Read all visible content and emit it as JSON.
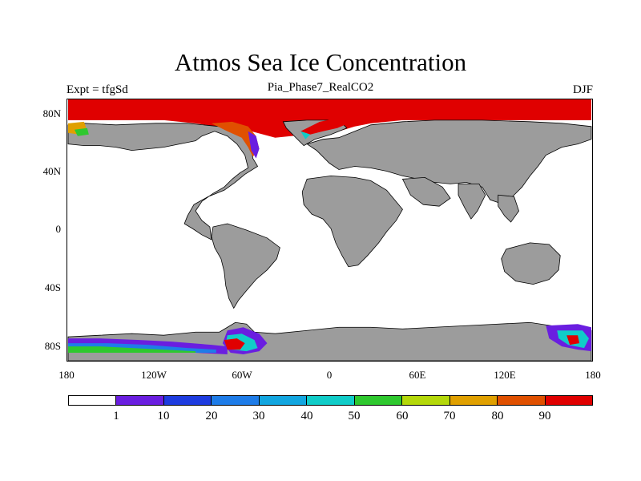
{
  "header": {
    "title": "Atmos Sea Ice Concentration",
    "experiment": "Expt = tfgSd",
    "case": "Pia_Phase7_RealCO2",
    "season": "DJF"
  },
  "axes": {
    "lat_labels": [
      "80N",
      "40N",
      "0",
      "40S",
      "80S"
    ],
    "lat_values": [
      80,
      40,
      0,
      -40,
      -80
    ],
    "lon_labels": [
      "180",
      "120W",
      "60W",
      "0",
      "60E",
      "120E",
      "180"
    ],
    "lon_values": [
      -180,
      -120,
      -60,
      0,
      60,
      120,
      180
    ],
    "lat_range": [
      -90,
      90
    ],
    "lon_range": [
      -180,
      180
    ]
  },
  "colorbar": {
    "labels": [
      "1",
      "10",
      "20",
      "30",
      "40",
      "50",
      "60",
      "70",
      "80",
      "90"
    ],
    "colors": [
      "#ffffff",
      "#6a1ee0",
      "#1e3ce0",
      "#1e7ce8",
      "#12a6e0",
      "#10ccc8",
      "#2ec82e",
      "#b4d80a",
      "#e0a000",
      "#e05000",
      "#e00000"
    ]
  },
  "map_colors": {
    "land": "#9c9c9c",
    "ocean": "#ffffff",
    "coast": "#000000"
  }
}
